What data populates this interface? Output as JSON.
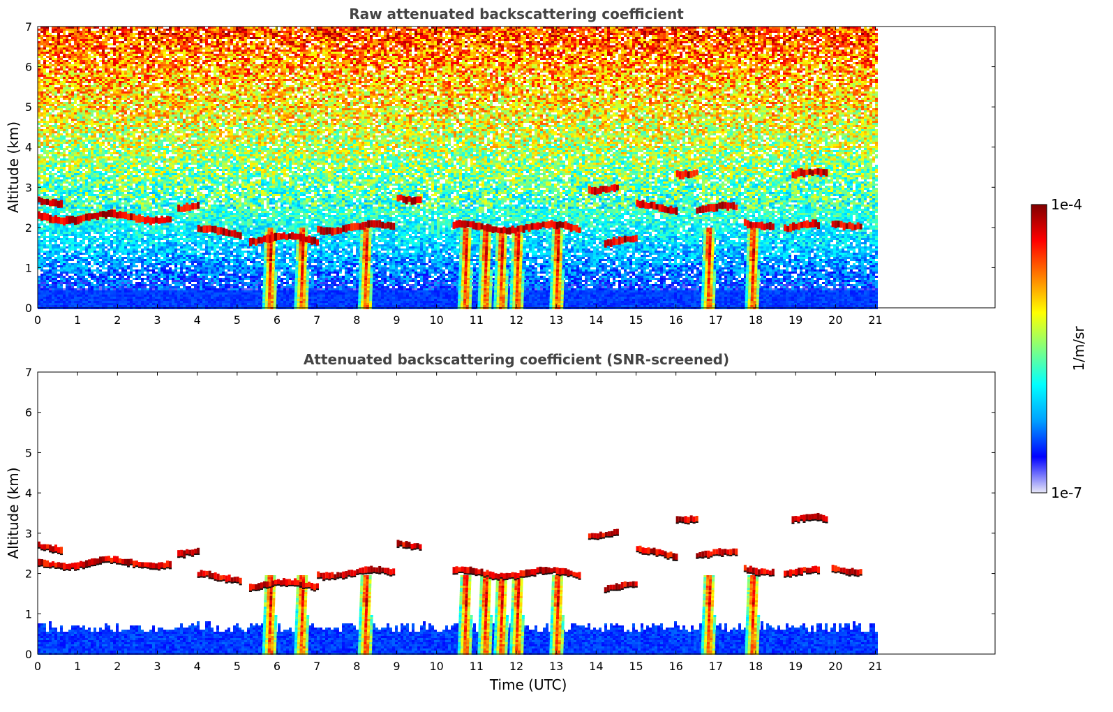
{
  "chart_data": [
    {
      "type": "heatmap",
      "title": "Raw attenuated backscattering coefficient",
      "xlabel": "",
      "ylabel": "Altitude (km)",
      "xlim": [
        0,
        24
      ],
      "ylim": [
        0,
        7
      ],
      "x_ticks": [
        0,
        1,
        2,
        3,
        4,
        5,
        6,
        7,
        8,
        9,
        10,
        11,
        12,
        13,
        14,
        15,
        16,
        17,
        18,
        19,
        20,
        21
      ],
      "y_ticks": [
        0,
        1,
        2,
        3,
        4,
        5,
        6,
        7
      ],
      "data_time_range": [
        0,
        21
      ],
      "grid": false,
      "cloud_layers": [
        {
          "t_start": 0.0,
          "t_end": 3.35,
          "alt_km": 2.25
        },
        {
          "t_start": 0.0,
          "t_end": 0.6,
          "alt_km": 2.65
        },
        {
          "t_start": 3.5,
          "t_end": 4.0,
          "alt_km": 2.45
        },
        {
          "t_start": 4.0,
          "t_end": 5.1,
          "alt_km": 1.9
        },
        {
          "t_start": 5.3,
          "t_end": 7.0,
          "alt_km": 1.7
        },
        {
          "t_start": 7.0,
          "t_end": 8.9,
          "alt_km": 2.0
        },
        {
          "t_start": 9.0,
          "t_end": 9.6,
          "alt_km": 2.75
        },
        {
          "t_start": 10.4,
          "t_end": 13.6,
          "alt_km": 2.0
        },
        {
          "t_start": 13.8,
          "t_end": 14.5,
          "alt_km": 3.0
        },
        {
          "t_start": 14.2,
          "t_end": 15.0,
          "alt_km": 1.65
        },
        {
          "t_start": 15.0,
          "t_end": 16.0,
          "alt_km": 2.5
        },
        {
          "t_start": 16.0,
          "t_end": 16.5,
          "alt_km": 3.4
        },
        {
          "t_start": 16.5,
          "t_end": 17.5,
          "alt_km": 2.45
        },
        {
          "t_start": 17.7,
          "t_end": 18.4,
          "alt_km": 2.1
        },
        {
          "t_start": 18.9,
          "t_end": 19.8,
          "alt_km": 3.3
        },
        {
          "t_start": 18.7,
          "t_end": 19.6,
          "alt_km": 2.0
        },
        {
          "t_start": 19.9,
          "t_end": 20.6,
          "alt_km": 2.1
        }
      ],
      "precipitation_shafts_utc": [
        5.8,
        6.6,
        8.2,
        10.7,
        11.2,
        11.6,
        12.0,
        13.0,
        16.8,
        17.9
      ]
    },
    {
      "type": "heatmap",
      "title": "Attenuated backscattering coefficient (SNR-screened)",
      "xlabel": "Time (UTC)",
      "ylabel": "Altitude (km)",
      "xlim": [
        0,
        24
      ],
      "ylim": [
        0,
        7
      ],
      "x_ticks": [
        0,
        1,
        2,
        3,
        4,
        5,
        6,
        7,
        8,
        9,
        10,
        11,
        12,
        13,
        14,
        15,
        16,
        17,
        18,
        19,
        20,
        21
      ],
      "y_ticks": [
        0,
        1,
        2,
        3,
        4,
        5,
        6,
        7
      ],
      "data_time_range": [
        0,
        21
      ],
      "grid": false,
      "boundary_layer_top_km": 0.7,
      "cloud_layers": [
        {
          "t_start": 0.0,
          "t_end": 3.35,
          "alt_km": 2.25
        },
        {
          "t_start": 0.0,
          "t_end": 0.6,
          "alt_km": 2.65
        },
        {
          "t_start": 3.5,
          "t_end": 4.0,
          "alt_km": 2.45
        },
        {
          "t_start": 4.0,
          "t_end": 5.1,
          "alt_km": 1.9
        },
        {
          "t_start": 5.3,
          "t_end": 7.0,
          "alt_km": 1.7
        },
        {
          "t_start": 7.0,
          "t_end": 8.9,
          "alt_km": 2.0
        },
        {
          "t_start": 9.0,
          "t_end": 9.6,
          "alt_km": 2.75
        },
        {
          "t_start": 10.4,
          "t_end": 13.6,
          "alt_km": 2.0
        },
        {
          "t_start": 13.8,
          "t_end": 14.5,
          "alt_km": 3.0
        },
        {
          "t_start": 14.2,
          "t_end": 15.0,
          "alt_km": 1.65
        },
        {
          "t_start": 15.0,
          "t_end": 16.0,
          "alt_km": 2.5
        },
        {
          "t_start": 16.0,
          "t_end": 16.5,
          "alt_km": 3.4
        },
        {
          "t_start": 16.5,
          "t_end": 17.5,
          "alt_km": 2.45
        },
        {
          "t_start": 17.7,
          "t_end": 18.4,
          "alt_km": 2.1
        },
        {
          "t_start": 18.9,
          "t_end": 19.8,
          "alt_km": 3.3
        },
        {
          "t_start": 18.7,
          "t_end": 19.6,
          "alt_km": 2.0
        },
        {
          "t_start": 19.9,
          "t_end": 20.6,
          "alt_km": 2.1
        }
      ],
      "precipitation_shafts_utc": [
        5.8,
        6.6,
        8.2,
        10.7,
        11.2,
        11.6,
        12.0,
        13.0,
        16.8,
        17.9
      ]
    }
  ],
  "colorbar": {
    "label": "1/m/sr",
    "max_label": "1e-4",
    "min_label": "1e-7",
    "scale": "log",
    "colormap": "jet",
    "stops": [
      "#e8e8f8",
      "#0000ff",
      "#00a0ff",
      "#00ffff",
      "#80ff80",
      "#ffff00",
      "#ff8000",
      "#ff0000",
      "#800000"
    ]
  }
}
